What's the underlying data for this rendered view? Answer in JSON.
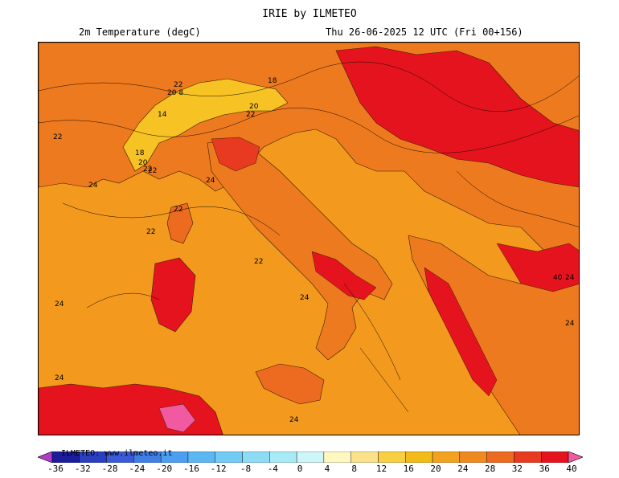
{
  "header": {
    "title": "IRIE by ILMETEO",
    "variable": "2m Temperature (degC)",
    "valid_time": "Thu 26-06-2025 12 UTC (Fri 00+156)"
  },
  "map": {
    "contour_labels": [
      "22",
      "18",
      "22",
      "20 8",
      "20",
      "22",
      "14",
      "22",
      "18",
      "20",
      "22",
      "24",
      "24",
      "22",
      "22",
      "22",
      "24",
      "24",
      "24",
      "24",
      "24",
      "24",
      "40"
    ]
  },
  "colorbar": {
    "credit": "ILMETEO: www.ilmeteo.it",
    "ticks": [
      "-36",
      "-32",
      "-28",
      "-24",
      "-20",
      "-16",
      "-12",
      "-8",
      "-4",
      "0",
      "4",
      "8",
      "12",
      "16",
      "20",
      "24",
      "28",
      "32",
      "36",
      "40"
    ],
    "colors": [
      "#b03cc8",
      "#1c1c9c",
      "#2a3fc0",
      "#3a5ad8",
      "#3f7fe6",
      "#4c9ef0",
      "#5cb6f2",
      "#72cbf4",
      "#8cdcf5",
      "#a8ebf7",
      "#cef6f8",
      "#fff7c0",
      "#fbe28a",
      "#f8cf42",
      "#f2bb1a",
      "#f2a21e",
      "#f08a20",
      "#ed6a21",
      "#e83a20",
      "#e5131e",
      "#f15aa0"
    ]
  }
}
